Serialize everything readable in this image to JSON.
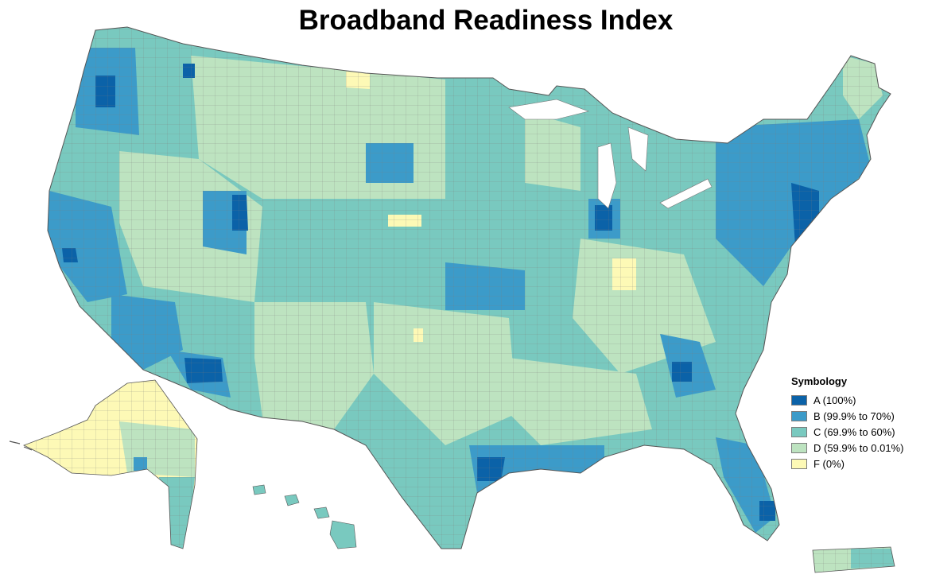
{
  "title": "Broadband Readiness Index",
  "legend": {
    "title": "Symbology",
    "items": [
      {
        "label": "A (100%)",
        "color": "#0b62a8"
      },
      {
        "label": "B (99.9% to 70%)",
        "color": "#3c9bc9"
      },
      {
        "label": "C (69.9% to 60%)",
        "color": "#79c9bf"
      },
      {
        "label": "D (59.9% to 0.01%)",
        "color": "#bde3c0"
      },
      {
        "label": "F (0%)",
        "color": "#fdf9b6"
      }
    ]
  },
  "colors": {
    "background": "#ffffff",
    "county_border": "#7a7a7a",
    "state_border": "#555555"
  }
}
